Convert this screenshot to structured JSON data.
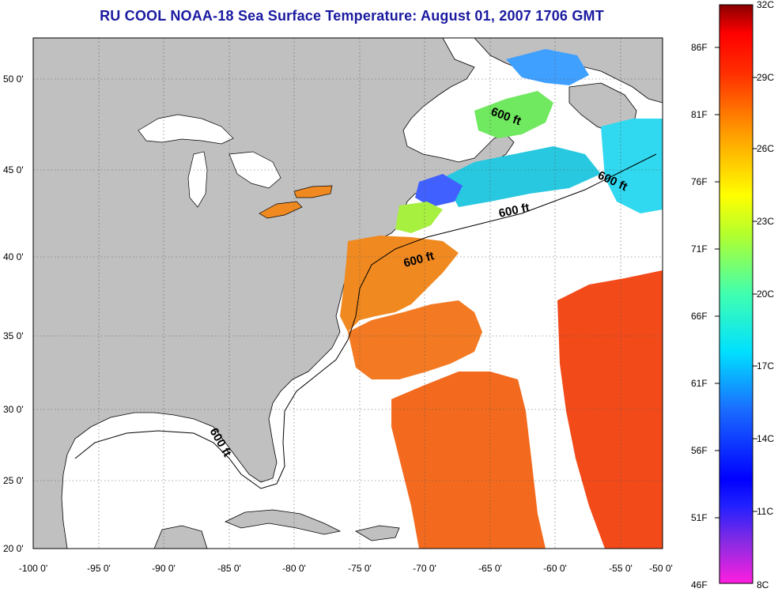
{
  "title": "RU COOL  NOAA-18  Sea Surface Temperature:  August 01, 2007 1706 GMT",
  "map": {
    "lon_ticks": [
      "-100 0'",
      "-95 0'",
      "-90 0'",
      "-85 0'",
      "-80 0'",
      "-75 0'",
      "-70 0'",
      "-65 0'",
      "-60 0'",
      "-55 0'",
      "-50 0'"
    ],
    "lat_ticks": [
      "50 0'",
      "45 0'",
      "40 0'",
      "35 0'",
      "30 0'",
      "25 0'",
      "20 0'"
    ],
    "contour_label": "600 ft",
    "colors": {
      "land": "#c0c0c0",
      "water_nodata": "#ffffff",
      "grid": "#555555"
    }
  },
  "colorbar": {
    "fahrenheit": [
      "86F",
      "81F",
      "76F",
      "71F",
      "66F",
      "61F",
      "56F",
      "51F",
      "46F"
    ],
    "celsius": [
      "32C",
      "29C",
      "26C",
      "23C",
      "20C",
      "17C",
      "14C",
      "11C",
      "8C"
    ]
  }
}
